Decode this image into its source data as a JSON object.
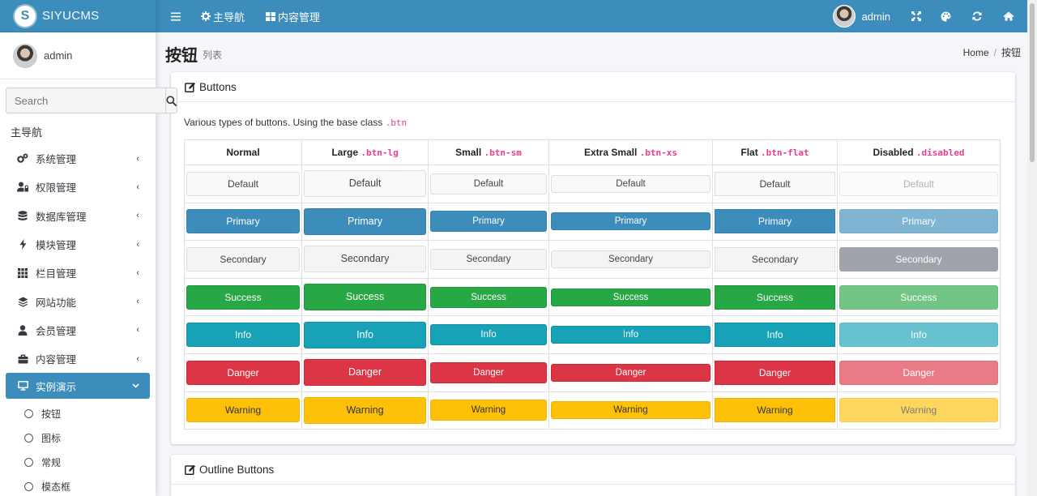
{
  "brand": {
    "name": "SIYUCMS",
    "logo_letter": "S"
  },
  "user": {
    "name": "admin"
  },
  "search": {
    "placeholder": "Search"
  },
  "sidebar": {
    "header": "主导航",
    "items": [
      {
        "label": "系统管理",
        "icon": "cogs-icon"
      },
      {
        "label": "权限管理",
        "icon": "user-lock-icon"
      },
      {
        "label": "数据库管理",
        "icon": "database-icon"
      },
      {
        "label": "模块管理",
        "icon": "bolt-icon"
      },
      {
        "label": "栏目管理",
        "icon": "th-icon"
      },
      {
        "label": "网站功能",
        "icon": "layers-icon"
      },
      {
        "label": "会员管理",
        "icon": "user-icon"
      },
      {
        "label": "内容管理",
        "icon": "briefcase-icon"
      }
    ],
    "active": {
      "label": "实例演示",
      "icon": "desktop-icon"
    },
    "sub_items": [
      "按钮",
      "图标",
      "常规",
      "模态框"
    ]
  },
  "topbar": {
    "nav_main": "主导航",
    "nav_content": "内容管理",
    "user": "admin",
    "right_icons": [
      "fullscreen-icon",
      "palette-icon",
      "refresh-icon",
      "home-icon"
    ]
  },
  "content": {
    "title": "按钮",
    "subtitle": "列表",
    "breadcrumb": {
      "home": "Home",
      "current": "按钮"
    }
  },
  "card": {
    "title": "Buttons",
    "intro_text": "Various types of buttons. Using the base class ",
    "intro_code": ".btn",
    "columns": [
      {
        "label": "Normal",
        "code": ""
      },
      {
        "label": "Large ",
        "code": ".btn-lg"
      },
      {
        "label": "Small ",
        "code": ".btn-sm"
      },
      {
        "label": "Extra Small ",
        "code": ".btn-xs"
      },
      {
        "label": "Flat ",
        "code": ".btn-flat"
      },
      {
        "label": "Disabled ",
        "code": ".disabled"
      }
    ],
    "rows": [
      {
        "label": "Default",
        "variant": "default"
      },
      {
        "label": "Primary",
        "variant": "primary"
      },
      {
        "label": "Secondary",
        "variant": "secondary"
      },
      {
        "label": "Success",
        "variant": "success"
      },
      {
        "label": "Info",
        "variant": "info"
      },
      {
        "label": "Danger",
        "variant": "danger"
      },
      {
        "label": "Warning",
        "variant": "warning"
      }
    ]
  },
  "card2": {
    "title": "Outline Buttons"
  },
  "colors": {
    "primary": "#3c8dbc",
    "success": "#28a745",
    "info": "#17a2b8",
    "danger": "#dc3545",
    "warning": "#ffc107"
  }
}
